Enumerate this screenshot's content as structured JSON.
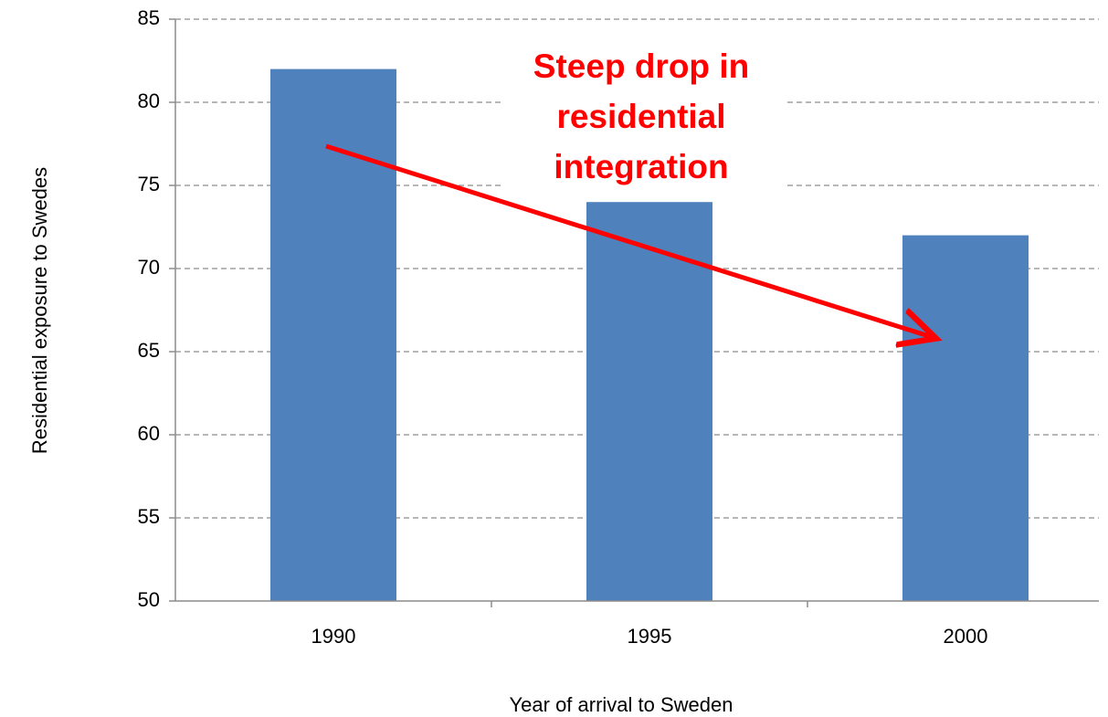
{
  "chart_data": {
    "type": "bar",
    "categories": [
      "1990",
      "1995",
      "2000"
    ],
    "values": [
      82,
      74,
      72
    ],
    "color": "#4f81bd",
    "ylim": [
      50,
      85
    ],
    "yticks": [
      50,
      55,
      60,
      65,
      70,
      75,
      80,
      85
    ],
    "grid": true,
    "xlabel": "Year of arrival to Sweden",
    "ylabel": "Residential exposure to Swedes",
    "annotation": [
      "Steep drop in",
      "residential",
      "integration"
    ]
  }
}
